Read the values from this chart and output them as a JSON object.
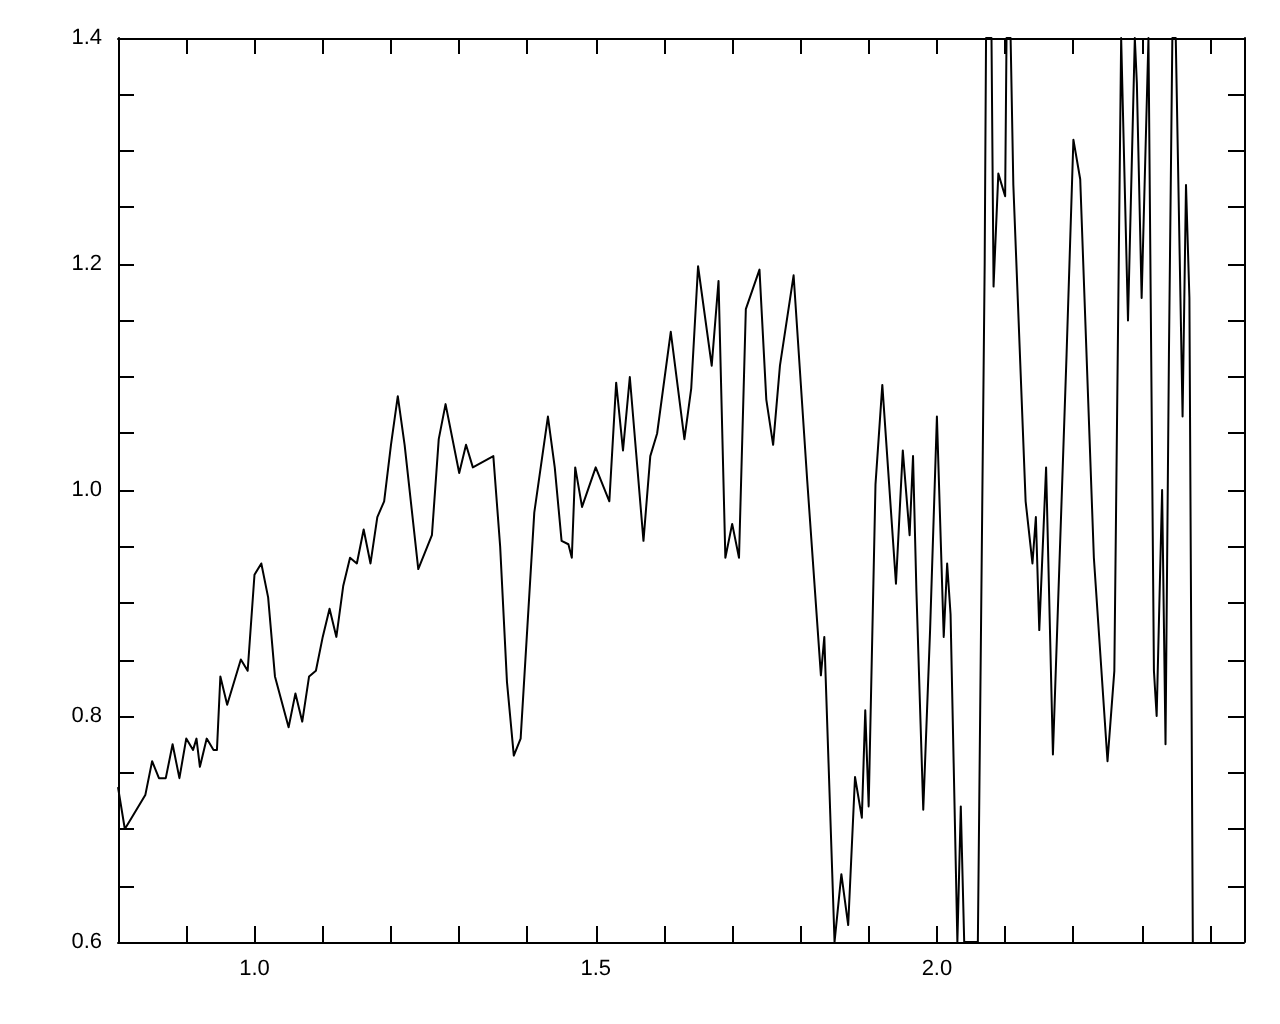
{
  "chart_data": {
    "type": "line",
    "color": "#000000",
    "marker": "none",
    "line_style": "solid",
    "grid": false,
    "xlim": [
      0.8,
      2.45
    ],
    "ylim": [
      0.6,
      1.4
    ],
    "xticks": [
      {
        "value": 0.8,
        "label": null
      },
      {
        "value": 0.9,
        "label": null
      },
      {
        "value": 1.0,
        "label": "1.0"
      },
      {
        "value": 1.1,
        "label": null
      },
      {
        "value": 1.2,
        "label": null
      },
      {
        "value": 1.3,
        "label": null
      },
      {
        "value": 1.4,
        "label": null
      },
      {
        "value": 1.5,
        "label": "1.5"
      },
      {
        "value": 1.6,
        "label": null
      },
      {
        "value": 1.7,
        "label": null
      },
      {
        "value": 1.8,
        "label": null
      },
      {
        "value": 1.9,
        "label": null
      },
      {
        "value": 2.0,
        "label": "2.0"
      },
      {
        "value": 2.1,
        "label": null
      },
      {
        "value": 2.2,
        "label": null
      },
      {
        "value": 2.3,
        "label": null
      },
      {
        "value": 2.4,
        "label": null
      }
    ],
    "yticks": [
      {
        "value": 0.6,
        "label": "0.6"
      },
      {
        "value": 0.65,
        "label": null
      },
      {
        "value": 0.7,
        "label": null
      },
      {
        "value": 0.75,
        "label": null
      },
      {
        "value": 0.8,
        "label": "0.8"
      },
      {
        "value": 0.85,
        "label": null
      },
      {
        "value": 0.9,
        "label": null
      },
      {
        "value": 0.95,
        "label": null
      },
      {
        "value": 1.0,
        "label": "1.0"
      },
      {
        "value": 1.05,
        "label": null
      },
      {
        "value": 1.1,
        "label": null
      },
      {
        "value": 1.15,
        "label": null
      },
      {
        "value": 1.2,
        "label": "1.2"
      },
      {
        "value": 1.25,
        "label": null
      },
      {
        "value": 1.3,
        "label": null
      },
      {
        "value": 1.35,
        "label": null
      },
      {
        "value": 1.4,
        "label": "1.4"
      }
    ],
    "x": [
      0.8,
      0.81,
      0.82,
      0.84,
      0.85,
      0.86,
      0.87,
      0.88,
      0.89,
      0.9,
      0.91,
      0.915,
      0.92,
      0.93,
      0.94,
      0.945,
      0.95,
      0.96,
      0.98,
      0.99,
      1.0,
      1.01,
      1.02,
      1.03,
      1.05,
      1.06,
      1.07,
      1.08,
      1.09,
      1.1,
      1.11,
      1.12,
      1.13,
      1.14,
      1.15,
      1.16,
      1.17,
      1.18,
      1.19,
      1.2,
      1.21,
      1.22,
      1.24,
      1.26,
      1.27,
      1.28,
      1.3,
      1.31,
      1.32,
      1.35,
      1.36,
      1.37,
      1.38,
      1.39,
      1.4,
      1.41,
      1.43,
      1.44,
      1.45,
      1.46,
      1.465,
      1.47,
      1.48,
      1.5,
      1.52,
      1.53,
      1.54,
      1.55,
      1.57,
      1.58,
      1.59,
      1.61,
      1.63,
      1.64,
      1.65,
      1.67,
      1.68,
      1.69,
      1.7,
      1.71,
      1.72,
      1.74,
      1.75,
      1.76,
      1.77,
      1.79,
      1.81,
      1.83,
      1.835,
      1.85,
      1.86,
      1.87,
      1.88,
      1.89,
      1.895,
      1.9,
      1.91,
      1.92,
      1.93,
      1.94,
      1.95,
      1.96,
      1.965,
      1.97,
      1.98,
      1.99,
      2.0,
      2.01,
      2.015,
      2.02,
      2.03,
      2.035,
      2.04,
      2.06,
      2.07,
      2.072,
      2.08,
      2.083,
      2.09,
      2.1,
      2.102,
      2.108,
      2.112,
      2.13,
      2.14,
      2.145,
      2.15,
      2.16,
      2.17,
      2.19,
      2.2,
      2.21,
      2.23,
      2.25,
      2.26,
      2.27,
      2.28,
      2.29,
      2.293,
      2.3,
      2.31,
      2.318,
      2.322,
      2.33,
      2.335,
      2.34,
      2.345,
      2.35,
      2.36,
      2.365,
      2.37,
      2.375
    ],
    "values": [
      0.737,
      0.7,
      0.71,
      0.73,
      0.76,
      0.745,
      0.745,
      0.775,
      0.745,
      0.78,
      0.77,
      0.78,
      0.755,
      0.78,
      0.77,
      0.77,
      0.835,
      0.81,
      0.85,
      0.84,
      0.925,
      0.935,
      0.905,
      0.835,
      0.79,
      0.82,
      0.795,
      0.835,
      0.84,
      0.87,
      0.895,
      0.87,
      0.915,
      0.94,
      0.935,
      0.965,
      0.935,
      0.976,
      0.99,
      1.04,
      1.083,
      1.04,
      0.93,
      0.96,
      1.045,
      1.076,
      1.015,
      1.04,
      1.02,
      1.03,
      0.95,
      0.83,
      0.765,
      0.78,
      0.88,
      0.98,
      1.065,
      1.02,
      0.955,
      0.952,
      0.94,
      1.02,
      0.985,
      1.02,
      0.99,
      1.095,
      1.035,
      1.1,
      0.955,
      1.03,
      1.05,
      1.14,
      1.045,
      1.09,
      1.198,
      1.11,
      1.185,
      0.94,
      0.97,
      0.94,
      1.16,
      1.195,
      1.08,
      1.04,
      1.11,
      1.19,
      1.008,
      0.836,
      0.87,
      0.6,
      0.66,
      0.615,
      0.746,
      0.71,
      0.805,
      0.72,
      1.005,
      1.093,
      1.005,
      0.917,
      1.035,
      0.96,
      1.03,
      0.91,
      0.717,
      0.876,
      1.065,
      0.87,
      0.935,
      0.89,
      0.6,
      0.72,
      0.6,
      0.6,
      1.2,
      1.4,
      1.4,
      1.18,
      1.28,
      1.26,
      1.4,
      1.4,
      1.27,
      0.99,
      0.935,
      0.976,
      0.876,
      1.02,
      0.766,
      1.12,
      1.31,
      1.275,
      0.94,
      0.76,
      0.84,
      1.4,
      1.15,
      1.4,
      1.36,
      1.17,
      1.4,
      0.84,
      0.8,
      1.0,
      0.775,
      1.12,
      1.4,
      1.4,
      1.065,
      1.27,
      1.17,
      0.6
    ]
  }
}
